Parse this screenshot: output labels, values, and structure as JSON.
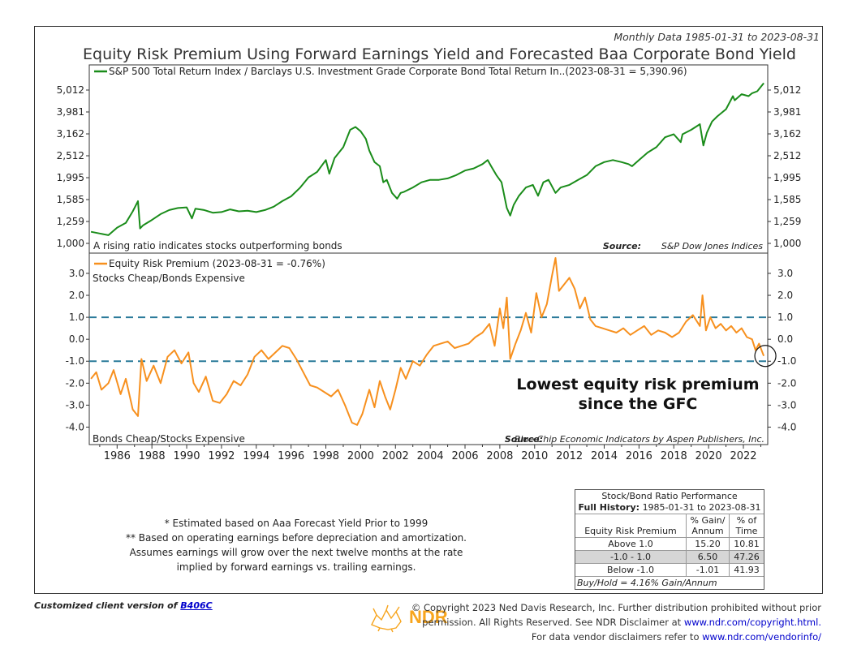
{
  "header": {
    "subtitle": "Monthly Data 1985-01-31 to 2023-08-31",
    "title": "Equity Risk Premium Using Forward Earnings Yield and Forecasted Baa Corporate Bond Yield"
  },
  "chart_data": [
    {
      "type": "line",
      "legend": "S&P 500 Total Return Index / Barclays U.S. Investment Grade Corporate Bond Total Return In..(2023-08-31 = 5,390.96)",
      "scale": "log",
      "ylim": [
        1000,
        5600
      ],
      "yticks": [
        "5,012",
        "3,981",
        "3,162",
        "2,512",
        "1,995",
        "1,585",
        "1,259",
        "1,000"
      ],
      "ytick_values": [
        5012,
        3981,
        3162,
        2512,
        1995,
        1585,
        1259,
        1000
      ],
      "note": "A rising ratio indicates stocks outperforming bonds",
      "source_label": "Source:",
      "source": "S&P Dow Jones Indices",
      "color": "#1a8c1a",
      "series": [
        {
          "x": [
            1985.0,
            1985.5,
            1986.0,
            1986.5,
            1987.0,
            1987.4,
            1987.7,
            1987.82,
            1988.0,
            1988.5,
            1989.0,
            1989.5,
            1990.0,
            1990.5,
            1990.8,
            1991.0,
            1991.5,
            1992.0,
            1992.5,
            1993.0,
            1993.5,
            1994.0,
            1994.5,
            1995.0,
            1995.5,
            1996.0,
            1996.5,
            1997.0,
            1997.5,
            1998.0,
            1998.5,
            1998.7,
            1999.0,
            1999.5,
            1999.9,
            2000.2,
            2000.5,
            2000.8,
            2001.0,
            2001.3,
            2001.6,
            2001.8,
            2002.0,
            2002.3,
            2002.6,
            2002.8,
            2003.0,
            2003.5,
            2004.0,
            2004.5,
            2005.0,
            2005.5,
            2006.0,
            2006.5,
            2007.0,
            2007.5,
            2007.8,
            2008.0,
            2008.3,
            2008.6,
            2008.9,
            2009.1,
            2009.3,
            2009.6,
            2010.0,
            2010.4,
            2010.7,
            2011.0,
            2011.3,
            2011.7,
            2012.0,
            2012.5,
            2013.0,
            2013.5,
            2014.0,
            2014.5,
            2015.0,
            2015.5,
            2015.9,
            2016.1,
            2016.5,
            2017.0,
            2017.5,
            2018.0,
            2018.5,
            2018.9,
            2019.0,
            2019.5,
            2020.0,
            2020.2,
            2020.4,
            2020.7,
            2021.0,
            2021.5,
            2021.9,
            2022.0,
            2022.4,
            2022.8,
            2023.0,
            2023.3,
            2023.67
          ],
          "values": [
            1130,
            1110,
            1090,
            1180,
            1240,
            1400,
            1560,
            1170,
            1210,
            1280,
            1360,
            1420,
            1450,
            1460,
            1300,
            1440,
            1420,
            1380,
            1390,
            1430,
            1400,
            1410,
            1390,
            1420,
            1470,
            1560,
            1640,
            1790,
            2000,
            2120,
            2400,
            2080,
            2450,
            2750,
            3300,
            3400,
            3250,
            3000,
            2650,
            2350,
            2250,
            1900,
            1950,
            1700,
            1600,
            1700,
            1720,
            1800,
            1900,
            1950,
            1950,
            1980,
            2050,
            2150,
            2200,
            2300,
            2400,
            2250,
            2050,
            1900,
            1450,
            1340,
            1500,
            1650,
            1800,
            1850,
            1650,
            1900,
            1950,
            1700,
            1800,
            1850,
            1950,
            2050,
            2250,
            2350,
            2400,
            2350,
            2300,
            2250,
            2400,
            2600,
            2750,
            3050,
            3150,
            2900,
            3150,
            3300,
            3500,
            2800,
            3200,
            3600,
            3800,
            4100,
            4700,
            4500,
            4800,
            4700,
            4850,
            4950,
            5391
          ]
        }
      ]
    },
    {
      "type": "line",
      "legend": "Equity Risk Premium (2023-08-31 = -0.76%)",
      "ylim": [
        -4.5,
        3.7
      ],
      "yticks": [
        "3.0",
        "2.0",
        "1.0",
        "0.0",
        "-1.0",
        "-2.0",
        "-3.0",
        "-4.0"
      ],
      "ytick_values": [
        3,
        2,
        1,
        0,
        -1,
        -2,
        -3,
        -4
      ],
      "reference_lines": [
        1.0,
        -1.0
      ],
      "top_label": "Stocks Cheap/Bonds Expensive",
      "bottom_label": "Bonds Cheap/Stocks Expensive",
      "source_label": "Source:",
      "source": "Blue Chip Economic Indicators by Aspen Publishers, Inc.",
      "annotation": [
        "Lowest equity risk premium",
        "since the GFC"
      ],
      "color": "#f7901e",
      "xticks": [
        "1986",
        "1988",
        "1990",
        "1992",
        "1994",
        "1996",
        "1998",
        "2000",
        "2002",
        "2004",
        "2006",
        "2008",
        "2010",
        "2012",
        "2014",
        "2016",
        "2018",
        "2020",
        "2022"
      ],
      "xtick_values": [
        1986,
        1988,
        1990,
        1992,
        1994,
        1996,
        1998,
        2000,
        2002,
        2004,
        2006,
        2008,
        2010,
        2012,
        2014,
        2016,
        2018,
        2020,
        2022
      ],
      "xlim": [
        1984.9,
        2023.9
      ],
      "series": [
        {
          "x": [
            1985.0,
            1985.3,
            1985.6,
            1986.0,
            1986.3,
            1986.7,
            1987.0,
            1987.4,
            1987.7,
            1987.9,
            1988.2,
            1988.6,
            1989.0,
            1989.4,
            1989.8,
            1990.2,
            1990.6,
            1990.9,
            1991.2,
            1991.6,
            1992.0,
            1992.4,
            1992.8,
            1993.2,
            1993.6,
            1994.0,
            1994.4,
            1994.8,
            1995.2,
            1995.6,
            1996.0,
            1996.4,
            1996.8,
            1997.2,
            1997.6,
            1998.0,
            1998.4,
            1998.8,
            1999.2,
            1999.6,
            2000.0,
            2000.3,
            2000.6,
            2001.0,
            2001.3,
            2001.6,
            2001.9,
            2002.2,
            2002.5,
            2002.8,
            2003.1,
            2003.5,
            2003.9,
            2004.3,
            2004.7,
            2005.1,
            2005.5,
            2005.9,
            2006.3,
            2006.7,
            2007.1,
            2007.5,
            2007.9,
            2008.2,
            2008.5,
            2008.7,
            2008.9,
            2009.1,
            2009.4,
            2009.7,
            2010.0,
            2010.3,
            2010.6,
            2010.9,
            2011.2,
            2011.5,
            2011.7,
            2011.9,
            2012.2,
            2012.5,
            2012.8,
            2013.1,
            2013.4,
            2013.7,
            2014.0,
            2014.4,
            2014.8,
            2015.2,
            2015.6,
            2016.0,
            2016.4,
            2016.8,
            2017.2,
            2017.6,
            2018.0,
            2018.4,
            2018.8,
            2019.2,
            2019.6,
            2020.0,
            2020.15,
            2020.35,
            2020.6,
            2020.9,
            2021.2,
            2021.5,
            2021.8,
            2022.1,
            2022.4,
            2022.7,
            2023.0,
            2023.2,
            2023.4,
            2023.67
          ],
          "values": [
            -1.8,
            -1.5,
            -2.3,
            -2.0,
            -1.4,
            -2.5,
            -1.8,
            -3.2,
            -3.5,
            -0.9,
            -1.9,
            -1.2,
            -2.0,
            -0.8,
            -0.5,
            -1.1,
            -0.6,
            -2.0,
            -2.4,
            -1.7,
            -2.8,
            -2.9,
            -2.5,
            -1.9,
            -2.1,
            -1.6,
            -0.8,
            -0.5,
            -0.9,
            -0.6,
            -0.3,
            -0.4,
            -0.9,
            -1.5,
            -2.1,
            -2.2,
            -2.4,
            -2.6,
            -2.3,
            -3.0,
            -3.8,
            -3.9,
            -3.4,
            -2.3,
            -3.1,
            -1.9,
            -2.6,
            -3.2,
            -2.3,
            -1.3,
            -1.8,
            -1.0,
            -1.2,
            -0.7,
            -0.3,
            -0.2,
            -0.1,
            -0.4,
            -0.3,
            -0.2,
            0.1,
            0.3,
            0.7,
            -0.3,
            1.4,
            0.5,
            1.9,
            -0.9,
            -0.2,
            0.4,
            1.2,
            0.3,
            2.1,
            1.0,
            1.6,
            2.9,
            3.7,
            2.2,
            2.5,
            2.8,
            2.3,
            1.4,
            1.9,
            0.9,
            0.6,
            0.5,
            0.4,
            0.3,
            0.5,
            0.2,
            0.4,
            0.6,
            0.2,
            0.4,
            0.3,
            0.1,
            0.3,
            0.8,
            1.1,
            0.6,
            2.0,
            0.4,
            1.0,
            0.5,
            0.7,
            0.4,
            0.6,
            0.3,
            0.5,
            0.1,
            0.0,
            -0.5,
            -0.2,
            -0.76
          ]
        }
      ]
    }
  ],
  "table": {
    "title": "Stock/Bond Ratio Performance",
    "history_label": "Full History:",
    "history_range": "1985-01-31 to 2023-08-31",
    "col1": "Equity Risk Premium",
    "col2a": "% Gain/",
    "col2b": "Annum",
    "col3a": "% of",
    "col3b": "Time",
    "rows": [
      {
        "label": "Above 1.0",
        "gain": "15.20",
        "time": "10.81"
      },
      {
        "label": "-1.0 - 1.0",
        "gain": "6.50",
        "time": "47.26"
      },
      {
        "label": "Below -1.0",
        "gain": "-1.01",
        "time": "41.93"
      }
    ],
    "footer": "Buy/Hold = 4.16% Gain/Annum"
  },
  "notes": [
    "* Estimated based on Aaa Forecast Yield Prior to 1999",
    "** Based on operating earnings before depreciation and amortization.",
    "Assumes earnings will grow over the next twelve months at the rate",
    "implied by forward earnings vs. trailing earnings."
  ],
  "footer": {
    "customized": "Customized client version of ",
    "code": "B406C",
    "logo_text": "NDR",
    "copyright_1": "© Copyright 2023 Ned Davis Research, Inc. Further distribution prohibited without prior",
    "copyright_2a": "permission. All Rights Reserved. See NDR Disclaimer at ",
    "copyright_2b": "www.ndr.com/copyright.html.",
    "copyright_3a": "For data vendor disclaimers refer to ",
    "copyright_3b": "www.ndr.com/vendorinfo/"
  }
}
